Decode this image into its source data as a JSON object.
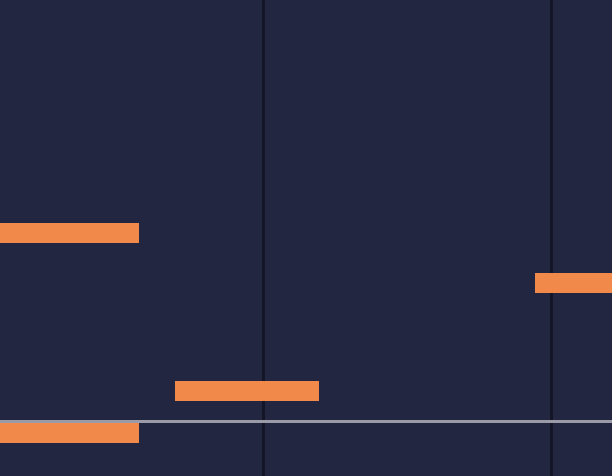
{
  "colors": {
    "background": "#232640",
    "gridline": "#141527",
    "note": "#f0894a",
    "playhead": "#9a9ba6"
  },
  "notes": [
    {
      "id": "note-1"
    },
    {
      "id": "note-2"
    },
    {
      "id": "note-3"
    },
    {
      "id": "note-4"
    }
  ]
}
